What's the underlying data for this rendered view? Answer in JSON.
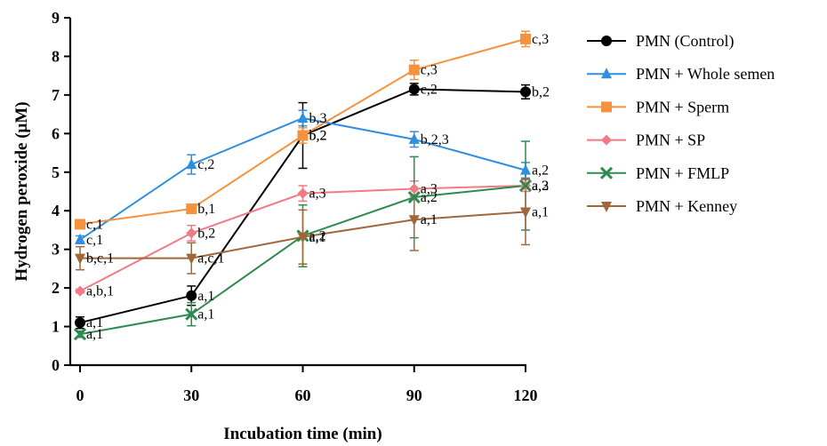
{
  "chart_data": {
    "type": "line",
    "xlabel": "Incubation time (min)",
    "ylabel": "Hydrogen peroxide (μM)",
    "xlim": [
      0,
      120
    ],
    "ylim": [
      0,
      9
    ],
    "xticks": [
      "0",
      "30",
      "60",
      "90",
      "120"
    ],
    "yticks": [
      "0",
      "1",
      "2",
      "3",
      "4",
      "5",
      "6",
      "7",
      "8",
      "9"
    ],
    "x": [
      0,
      30,
      60,
      90,
      120
    ],
    "grid": false,
    "legend_position": "right",
    "series": [
      {
        "name": "PMN (Control)",
        "color": "#000000",
        "marker": "circle",
        "values": [
          1.1,
          1.8,
          5.95,
          7.15,
          7.08
        ],
        "errors": [
          0.15,
          0.25,
          0.85,
          0.15,
          0.18
        ],
        "labels": [
          "a,1",
          "a,1",
          "b,2",
          "c,2",
          "b,2"
        ]
      },
      {
        "name": "PMN + Whole semen",
        "color": "#2f8fde",
        "marker": "triangle-up",
        "values": [
          3.25,
          5.2,
          6.4,
          5.85,
          5.05
        ],
        "errors": [
          0.1,
          0.25,
          0.2,
          0.2,
          0.2
        ],
        "labels": [
          "c,1",
          "c,2",
          "b,3",
          "b,2,3",
          "a,2"
        ]
      },
      {
        "name": "PMN + Sperm",
        "color": "#f5923e",
        "marker": "square",
        "values": [
          3.65,
          4.05,
          5.95,
          7.65,
          8.45
        ],
        "errors": [
          0.08,
          0.08,
          0.2,
          0.25,
          0.2
        ],
        "labels": [
          "c,1",
          "b,1",
          "b,2",
          "c,3",
          "c,3"
        ]
      },
      {
        "name": "PMN + SP",
        "color": "#f27a85",
        "marker": "diamond",
        "values": [
          1.92,
          3.42,
          4.45,
          4.57,
          4.65
        ],
        "errors": [
          0.05,
          0.2,
          0.2,
          0.2,
          0.15
        ],
        "labels": [
          "a,b,1",
          "b,2",
          "a,3",
          "a,3",
          "a,3"
        ]
      },
      {
        "name": "PMN + FMLP",
        "color": "#2e8b4f",
        "marker": "x",
        "values": [
          0.8,
          1.32,
          3.35,
          4.35,
          4.65
        ],
        "errors": [
          0.08,
          0.3,
          0.8,
          1.05,
          1.15
        ],
        "labels": [
          "a,1",
          "a,1",
          "a,2",
          "a,2",
          "a,2"
        ]
      },
      {
        "name": "PMN + Kenney",
        "color": "#a0673b",
        "marker": "triangle-down",
        "values": [
          2.77,
          2.77,
          3.32,
          3.77,
          3.97
        ],
        "errors": [
          0.3,
          0.4,
          0.7,
          0.8,
          0.85
        ],
        "labels": [
          "b,c,1",
          "a,c,1",
          "a,1",
          "a,1",
          "a,1"
        ]
      }
    ]
  }
}
